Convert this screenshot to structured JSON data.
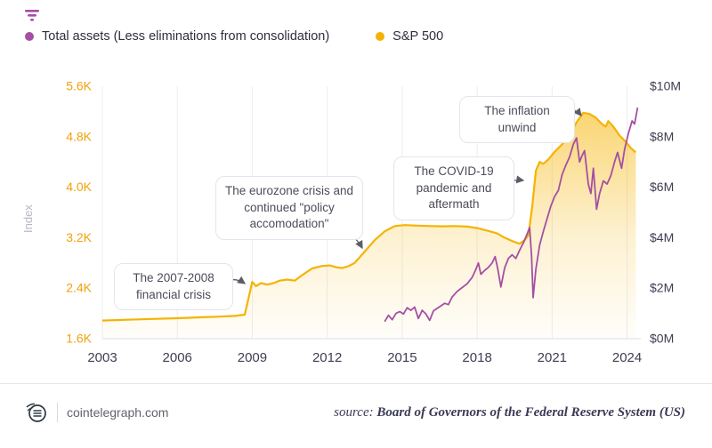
{
  "legend": {
    "items": [
      {
        "label": "Total assets (Less eliminations from consolidation)",
        "color": "#a44fa3"
      },
      {
        "label": "S&P 500",
        "color": "#f5b301"
      }
    ]
  },
  "chart_data": {
    "type": "line",
    "x_range": [
      2003,
      2024.55
    ],
    "x_ticks": {
      "values": [
        2003,
        2006,
        2009,
        2012,
        2015,
        2018,
        2021,
        2024
      ],
      "labels": [
        "2003",
        "2006",
        "2009",
        "2012",
        "2015",
        "2018",
        "2021",
        "2024"
      ]
    },
    "left_axis": {
      "title": "Index",
      "range": [
        1.6,
        5.6
      ],
      "tick_values": [
        1.6,
        2.4,
        3.2,
        4.0,
        4.8,
        5.6
      ],
      "tick_labels": [
        "1.6K",
        "2.4K",
        "3.2K",
        "4.0K",
        "4.8K",
        "5.6K"
      ],
      "color": "#f2a20c"
    },
    "right_axis": {
      "range": [
        0,
        10
      ],
      "tick_values": [
        0,
        2,
        4,
        6,
        8,
        10
      ],
      "tick_labels": [
        "$0M",
        "$2M",
        "$4M",
        "$6M",
        "$8M",
        "$10M"
      ],
      "color": "#3e3e52"
    },
    "grid_color": "#ececf3",
    "series": [
      {
        "name": "S&P 500",
        "color": "#f5b301",
        "axis": "right",
        "area": true,
        "points": [
          [
            2003,
            0.72
          ],
          [
            2004,
            0.75
          ],
          [
            2005,
            0.78
          ],
          [
            2006,
            0.81
          ],
          [
            2007,
            0.85
          ],
          [
            2007.6,
            0.87
          ],
          [
            2008.3,
            0.9
          ],
          [
            2008.7,
            0.95
          ],
          [
            2008.85,
            1.6
          ],
          [
            2009,
            2.25
          ],
          [
            2009.15,
            2.08
          ],
          [
            2009.35,
            2.2
          ],
          [
            2009.6,
            2.14
          ],
          [
            2009.85,
            2.2
          ],
          [
            2010.1,
            2.3
          ],
          [
            2010.4,
            2.34
          ],
          [
            2010.7,
            2.3
          ],
          [
            2011,
            2.52
          ],
          [
            2011.4,
            2.78
          ],
          [
            2011.8,
            2.88
          ],
          [
            2012.1,
            2.9
          ],
          [
            2012.35,
            2.83
          ],
          [
            2012.6,
            2.8
          ],
          [
            2012.85,
            2.87
          ],
          [
            2013.1,
            3.0
          ],
          [
            2013.5,
            3.45
          ],
          [
            2013.9,
            3.9
          ],
          [
            2014.3,
            4.25
          ],
          [
            2014.7,
            4.46
          ],
          [
            2015.1,
            4.5
          ],
          [
            2015.6,
            4.48
          ],
          [
            2016.1,
            4.46
          ],
          [
            2016.6,
            4.45
          ],
          [
            2017.1,
            4.46
          ],
          [
            2017.6,
            4.44
          ],
          [
            2018,
            4.38
          ],
          [
            2018.4,
            4.28
          ],
          [
            2018.8,
            4.17
          ],
          [
            2019.1,
            4.0
          ],
          [
            2019.45,
            3.85
          ],
          [
            2019.7,
            3.76
          ],
          [
            2019.9,
            3.9
          ],
          [
            2020.05,
            4.1
          ],
          [
            2020.2,
            5.2
          ],
          [
            2020.35,
            6.65
          ],
          [
            2020.5,
            7.0
          ],
          [
            2020.65,
            6.93
          ],
          [
            2020.85,
            7.1
          ],
          [
            2021.1,
            7.4
          ],
          [
            2021.4,
            7.7
          ],
          [
            2021.7,
            8.1
          ],
          [
            2022,
            8.6
          ],
          [
            2022.25,
            8.95
          ],
          [
            2022.5,
            8.9
          ],
          [
            2022.75,
            8.75
          ],
          [
            2023,
            8.5
          ],
          [
            2023.15,
            8.4
          ],
          [
            2023.25,
            8.62
          ],
          [
            2023.45,
            8.4
          ],
          [
            2023.7,
            8.05
          ],
          [
            2023.95,
            7.8
          ],
          [
            2024.15,
            7.55
          ],
          [
            2024.35,
            7.38
          ]
        ]
      },
      {
        "name": "Total assets (Less eliminations from consolidation)",
        "color": "#a44fa3",
        "axis": "left",
        "area": false,
        "points": [
          [
            2014.3,
            1.87
          ],
          [
            2014.45,
            1.97
          ],
          [
            2014.6,
            1.9
          ],
          [
            2014.75,
            2.0
          ],
          [
            2014.9,
            2.03
          ],
          [
            2015.05,
            1.99
          ],
          [
            2015.2,
            2.09
          ],
          [
            2015.35,
            2.05
          ],
          [
            2015.5,
            2.1
          ],
          [
            2015.65,
            1.92
          ],
          [
            2015.8,
            2.05
          ],
          [
            2015.95,
            1.99
          ],
          [
            2016.1,
            1.89
          ],
          [
            2016.25,
            2.04
          ],
          [
            2016.4,
            2.08
          ],
          [
            2016.55,
            2.12
          ],
          [
            2016.7,
            2.16
          ],
          [
            2016.85,
            2.14
          ],
          [
            2017,
            2.26
          ],
          [
            2017.2,
            2.35
          ],
          [
            2017.4,
            2.41
          ],
          [
            2017.6,
            2.47
          ],
          [
            2017.8,
            2.57
          ],
          [
            2017.95,
            2.7
          ],
          [
            2018.05,
            2.8
          ],
          [
            2018.15,
            2.62
          ],
          [
            2018.3,
            2.68
          ],
          [
            2018.45,
            2.73
          ],
          [
            2018.6,
            2.8
          ],
          [
            2018.72,
            2.9
          ],
          [
            2018.82,
            2.72
          ],
          [
            2018.95,
            2.42
          ],
          [
            2019.1,
            2.72
          ],
          [
            2019.25,
            2.87
          ],
          [
            2019.4,
            2.93
          ],
          [
            2019.55,
            2.87
          ],
          [
            2019.7,
            3.0
          ],
          [
            2019.85,
            3.12
          ],
          [
            2020,
            3.26
          ],
          [
            2020.1,
            3.36
          ],
          [
            2020.18,
            2.9
          ],
          [
            2020.24,
            2.25
          ],
          [
            2020.35,
            2.7
          ],
          [
            2020.5,
            3.08
          ],
          [
            2020.65,
            3.3
          ],
          [
            2020.8,
            3.5
          ],
          [
            2020.95,
            3.7
          ],
          [
            2021.1,
            3.85
          ],
          [
            2021.25,
            3.95
          ],
          [
            2021.4,
            4.2
          ],
          [
            2021.55,
            4.35
          ],
          [
            2021.7,
            4.48
          ],
          [
            2021.85,
            4.68
          ],
          [
            2021.98,
            4.78
          ],
          [
            2022.1,
            4.4
          ],
          [
            2022.2,
            4.5
          ],
          [
            2022.3,
            4.58
          ],
          [
            2022.45,
            4.05
          ],
          [
            2022.55,
            3.9
          ],
          [
            2022.65,
            4.3
          ],
          [
            2022.78,
            3.65
          ],
          [
            2022.9,
            3.9
          ],
          [
            2023.05,
            4.1
          ],
          [
            2023.2,
            4.05
          ],
          [
            2023.35,
            4.18
          ],
          [
            2023.5,
            4.4
          ],
          [
            2023.62,
            4.55
          ],
          [
            2023.78,
            4.3
          ],
          [
            2023.9,
            4.6
          ],
          [
            2024.05,
            4.85
          ],
          [
            2024.2,
            5.05
          ],
          [
            2024.3,
            5.0
          ],
          [
            2024.42,
            5.26
          ]
        ]
      }
    ],
    "annotations": [
      {
        "text": "The 2007-2008 financial crisis"
      },
      {
        "text": "The eurozone crisis and continued \"policy accomodation\""
      },
      {
        "text": "The COVID-19 pandemic and aftermath"
      },
      {
        "text": "The inflation unwind"
      }
    ]
  },
  "footer": {
    "brand": "cointelegraph.com",
    "source_label": "source:",
    "source_text": "Board of Governors of the Federal Reserve System (US)"
  }
}
